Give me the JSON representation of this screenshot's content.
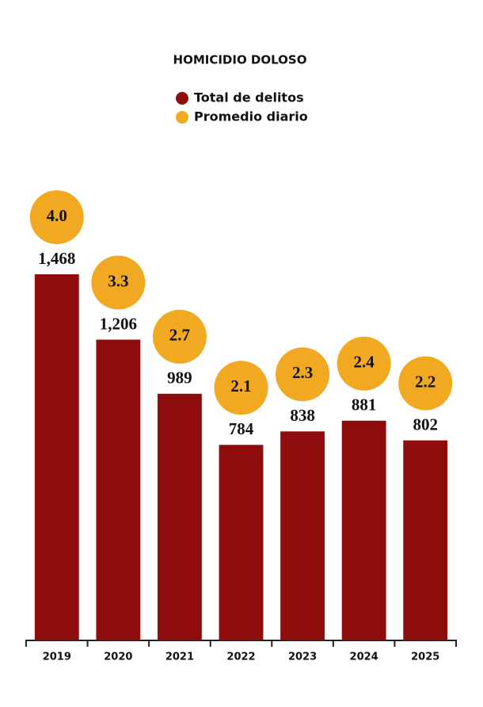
{
  "chart_data": {
    "type": "bar",
    "title": "HOMICIDIO DOLOSO",
    "categories": [
      "2019",
      "2020",
      "2021",
      "2022",
      "2023",
      "2024",
      "2025"
    ],
    "series": [
      {
        "name": "Total de delitos",
        "color": "#8e0c0c",
        "values": [
          1468,
          1206,
          989,
          784,
          838,
          881,
          802
        ],
        "value_labels": [
          "1,468",
          "1,206",
          "989",
          "784",
          "838",
          "881",
          "802"
        ]
      },
      {
        "name": "Promedio diario",
        "color": "#f0a920",
        "values": [
          4.0,
          3.3,
          2.7,
          2.1,
          2.3,
          2.4,
          2.2
        ],
        "value_labels": [
          "4.0",
          "3.3",
          "2.7",
          "2.1",
          "2.3",
          "2.4",
          "2.2"
        ]
      }
    ],
    "ylim": [
      0,
      1500
    ]
  }
}
